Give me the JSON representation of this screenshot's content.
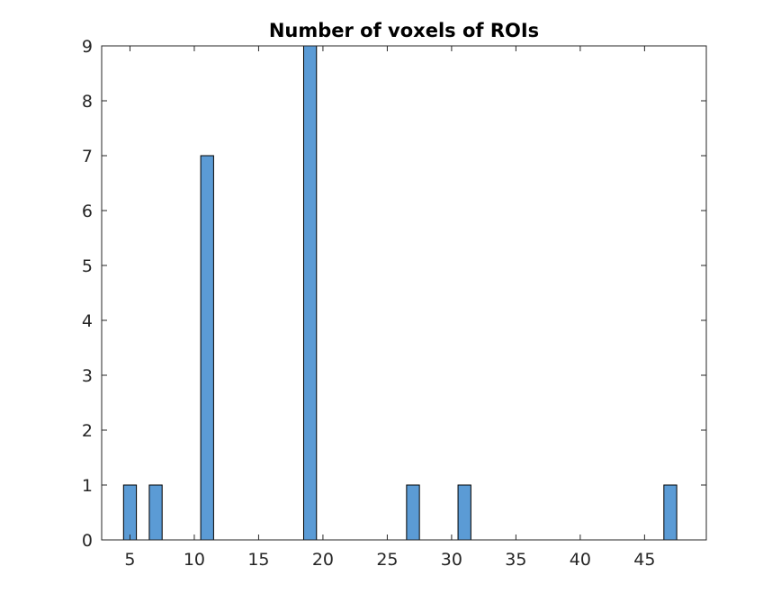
{
  "chart_data": {
    "type": "bar",
    "title": "Number of voxels of ROIs",
    "xlabel": "",
    "ylabel": "",
    "xlim": [
      2.8,
      49.8
    ],
    "ylim": [
      0,
      9
    ],
    "x_ticks": [
      5,
      10,
      15,
      20,
      25,
      30,
      35,
      40,
      45
    ],
    "y_ticks": [
      0,
      1,
      2,
      3,
      4,
      5,
      6,
      7,
      8,
      9
    ],
    "bin_width": 1,
    "bins": [
      {
        "x": 5,
        "value": 1
      },
      {
        "x": 7,
        "value": 1
      },
      {
        "x": 11,
        "value": 7
      },
      {
        "x": 19,
        "value": 9
      },
      {
        "x": 27,
        "value": 1
      },
      {
        "x": 31,
        "value": 1
      },
      {
        "x": 47,
        "value": 1
      }
    ],
    "baseline_range": [
      4.5,
      47.5
    ],
    "bar_color": "#5b9bd5",
    "edge_color": "#000000",
    "grid": false
  }
}
